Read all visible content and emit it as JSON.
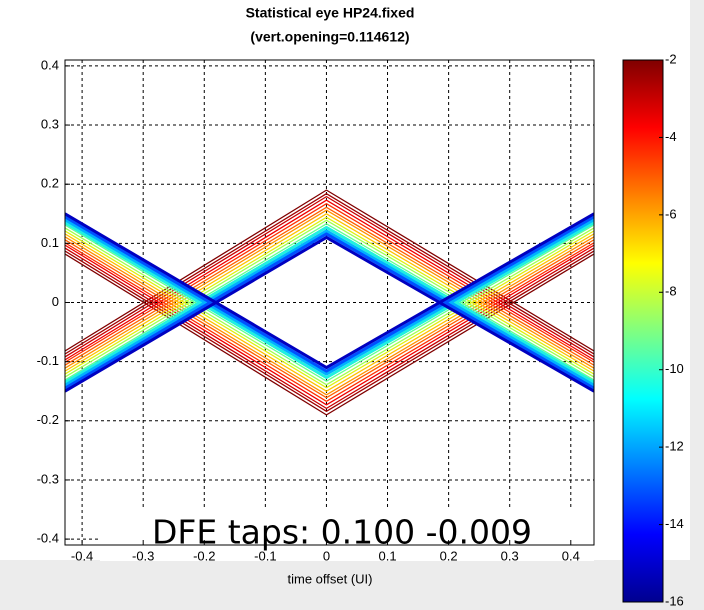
{
  "chart_data": {
    "type": "contour",
    "title": "Statistical eye HP24.fixed",
    "subtitle": "(vert.opening=0.114612)",
    "x_label": "time offset (UI)",
    "annotation": "DFE taps:  0.100  -0.009",
    "xlim": [
      -0.428,
      0.438
    ],
    "ylim": [
      -0.41,
      0.41
    ],
    "xticks": [
      -0.4,
      -0.3,
      -0.2,
      -0.1,
      0,
      0.1,
      0.2,
      0.3,
      0.4
    ],
    "yticks": [
      -0.4,
      -0.3,
      -0.2,
      -0.1,
      0,
      0.1,
      0.2,
      0.3,
      0.4
    ],
    "grid": true,
    "clim": [
      -16,
      -2
    ],
    "cticks": [
      -16,
      -14,
      -12,
      -10,
      -8,
      -6,
      -4,
      -2
    ],
    "colormap": [
      "#00008f",
      "#0000ff",
      "#0080ff",
      "#00ffff",
      "#80ff80",
      "#ffff00",
      "#ff8000",
      "#ff0000",
      "#800000"
    ],
    "x": [
      -0.428,
      0,
      0.438
    ],
    "series": [
      {
        "level": -2,
        "color": "#800000",
        "y1": [
          0.082,
          -0.19,
          0.082
        ],
        "y2": [
          -0.082,
          0.19,
          -0.082
        ]
      },
      {
        "level": -3,
        "color": "#a00000",
        "y1": [
          0.087,
          -0.184,
          0.087
        ],
        "y2": [
          -0.087,
          0.184,
          -0.087
        ]
      },
      {
        "level": -4,
        "color": "#c80000",
        "y1": [
          0.092,
          -0.179,
          0.092
        ],
        "y2": [
          -0.092,
          0.179,
          -0.092
        ]
      },
      {
        "level": -5,
        "color": "#f00000",
        "y1": [
          0.097,
          -0.173,
          0.097
        ],
        "y2": [
          -0.097,
          0.173,
          -0.097
        ]
      },
      {
        "level": -6,
        "color": "#ff3000",
        "y1": [
          0.101,
          -0.167,
          0.101
        ],
        "y2": [
          -0.101,
          0.167,
          -0.101
        ]
      },
      {
        "level": -7,
        "color": "#ff6000",
        "y1": [
          0.106,
          -0.161,
          0.106
        ],
        "y2": [
          -0.106,
          0.161,
          -0.106
        ]
      },
      {
        "level": -8,
        "color": "#ff9000",
        "y1": [
          0.111,
          -0.156,
          0.111
        ],
        "y2": [
          -0.111,
          0.156,
          -0.111
        ]
      },
      {
        "level": -9,
        "color": "#ffc000",
        "y1": [
          0.116,
          -0.15,
          0.116
        ],
        "y2": [
          -0.116,
          0.15,
          -0.116
        ]
      },
      {
        "level": -10,
        "color": "#e0f010",
        "y1": [
          0.121,
          -0.144,
          0.121
        ],
        "y2": [
          -0.121,
          0.144,
          -0.121
        ]
      },
      {
        "level": -11,
        "color": "#a0ff50",
        "y1": [
          0.126,
          -0.139,
          0.126
        ],
        "y2": [
          -0.126,
          0.139,
          -0.126
        ]
      },
      {
        "level": -12,
        "color": "#60ff90",
        "y1": [
          0.131,
          -0.133,
          0.131
        ],
        "y2": [
          -0.131,
          0.133,
          -0.131
        ]
      },
      {
        "level": -13,
        "color": "#20f0e0",
        "y1": [
          0.135,
          -0.127,
          0.135
        ],
        "y2": [
          -0.135,
          0.127,
          -0.135
        ]
      },
      {
        "level": -14,
        "color": "#00b0ff",
        "y1": [
          0.14,
          -0.121,
          0.14
        ],
        "y2": [
          -0.14,
          0.121,
          -0.14
        ]
      },
      {
        "level": -15,
        "color": "#0050ff",
        "y1": [
          0.145,
          -0.116,
          0.145
        ],
        "y2": [
          -0.145,
          0.116,
          -0.145
        ]
      },
      {
        "level": -16,
        "color": "#0000c0",
        "y1": [
          0.15,
          -0.11,
          0.15
        ],
        "y2": [
          -0.15,
          0.11,
          -0.15
        ]
      }
    ]
  }
}
